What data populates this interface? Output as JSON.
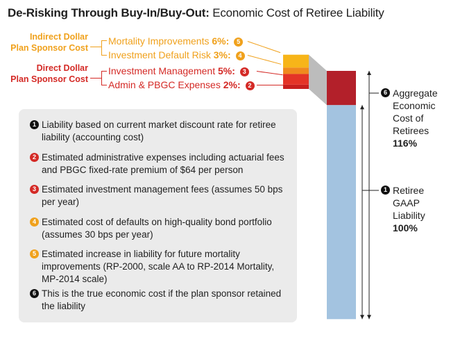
{
  "title": {
    "bold": "De-Risking Through Buy-In/Buy-Out:",
    "rest": " Economic Cost of Retiree Liability"
  },
  "categories": {
    "indirect": [
      "Indirect Dollar",
      "Plan Sponsor Cost"
    ],
    "direct": [
      "Direct Dollar",
      "Plan Sponsor Cost"
    ]
  },
  "components": [
    {
      "label": "Mortality Improvements",
      "pct": "6%:",
      "num": "5"
    },
    {
      "label": "Investment Default Risk",
      "pct": "3%:",
      "num": "4"
    },
    {
      "label": "Investment Management",
      "pct": "5%:",
      "num": "3"
    },
    {
      "label": "Admin & PBGC Expenses",
      "pct": "2%:",
      "num": "2"
    }
  ],
  "notes": [
    {
      "num": "1",
      "text": "Liability based on current market discount rate for retiree liability (accounting cost)"
    },
    {
      "num": "2",
      "text": "Estimated administrative expenses including actuarial fees and PBGC fixed-rate premium of $64 per person"
    },
    {
      "num": "3",
      "text": "Estimated investment management fees (assumes 50 bps per year)"
    },
    {
      "num": "4",
      "text": "Estimated cost of defaults on high-quality bond portfolio (assumes 30 bps per year)"
    },
    {
      "num": "5",
      "text": "Estimated increase in liability for future mortality improvements (RP-2000, scale AA to RP-2014 Mortality, MP-2014 scale)"
    },
    {
      "num": "6",
      "text": "This is the true economic cost if the plan sponsor retained the liability"
    }
  ],
  "side": {
    "aggregate": {
      "num": "6",
      "lines": [
        "Aggregate",
        "Economic",
        "Cost of",
        "Retirees"
      ],
      "pct": "116%"
    },
    "gaap": {
      "num": "1",
      "lines": [
        "Retiree",
        "GAAP",
        "Liability"
      ],
      "pct": "100%"
    }
  },
  "colors": {
    "mortality": "#f7b519",
    "default_risk": "#f08a1e",
    "investment_mgmt": "#e43427",
    "admin_pbgc": "#c8201e",
    "aggregate": "#b3202a",
    "gaap": "#a3c3e0",
    "connector": "#bcbcbc",
    "orange_text": "#f0a11c",
    "red_text": "#d42a26"
  },
  "chart_data": {
    "type": "bar",
    "series": [
      {
        "name": "Mortality Improvements",
        "value": 6
      },
      {
        "name": "Investment Default Risk",
        "value": 3
      },
      {
        "name": "Investment Management",
        "value": 5
      },
      {
        "name": "Admin & PBGC Expenses",
        "value": 2
      },
      {
        "name": "Aggregate Economic Cost of Retirees",
        "value": 116
      },
      {
        "name": "Retiree GAAP Liability",
        "value": 100
      }
    ]
  }
}
